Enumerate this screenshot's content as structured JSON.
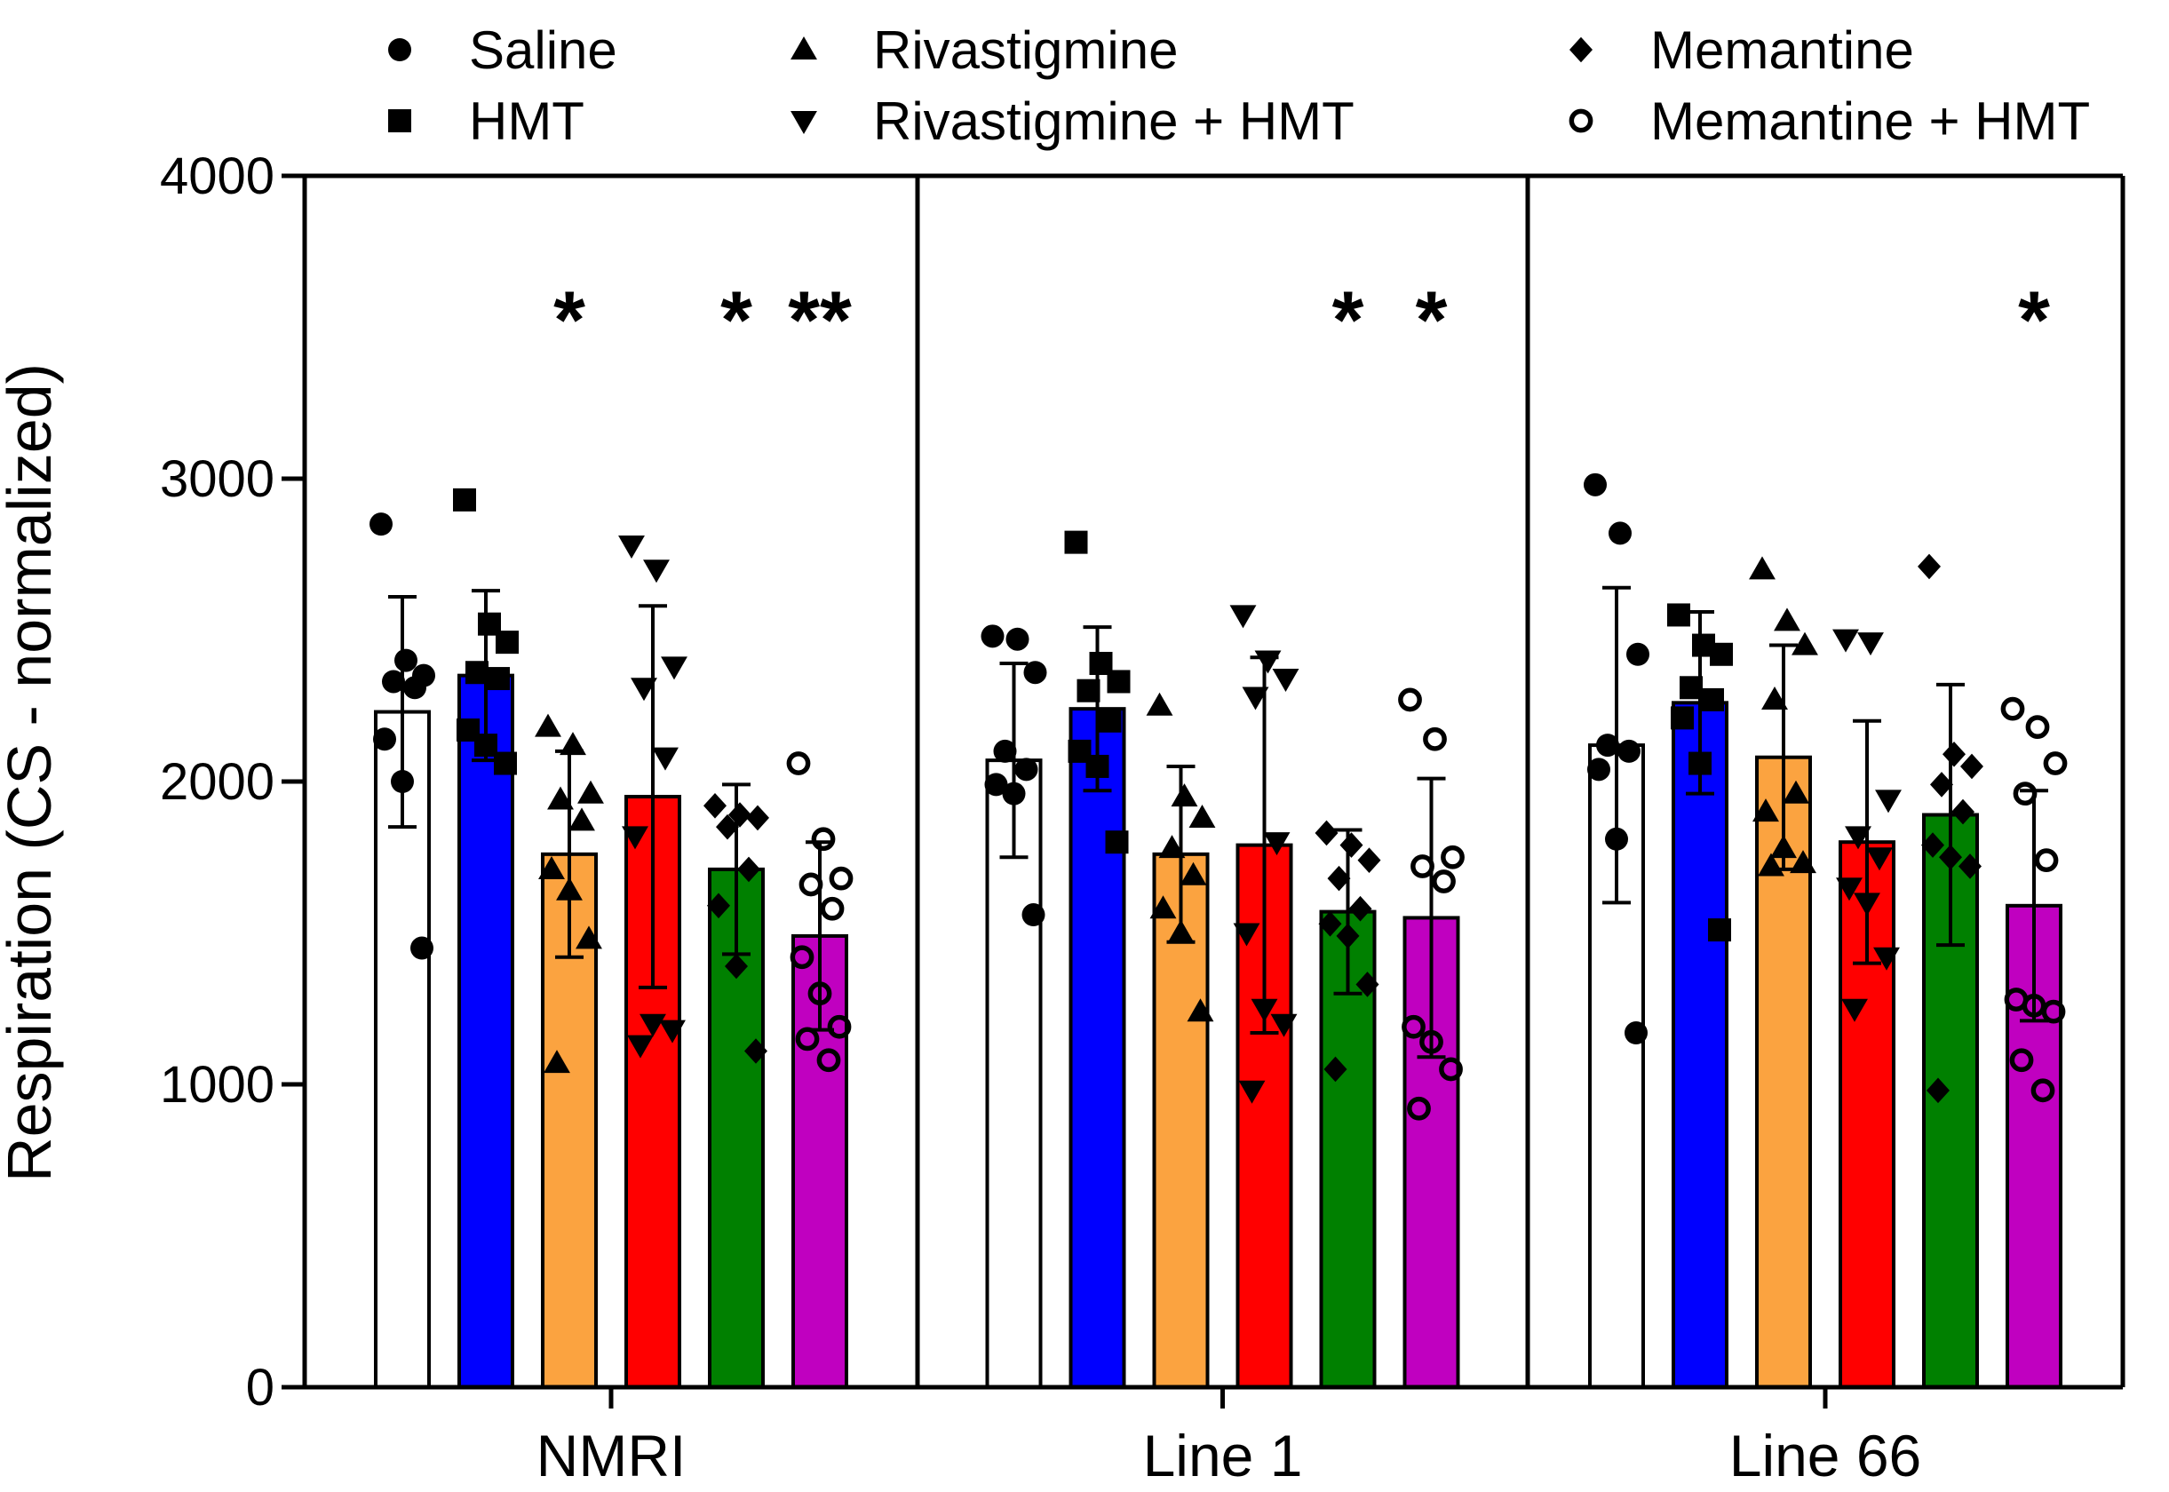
{
  "chart_data": {
    "type": "bar",
    "title": "",
    "xlabel": "",
    "ylabel": "Respiration (CS - normalized)",
    "ylim": [
      0,
      4000
    ],
    "yticks": [
      0,
      1000,
      2000,
      3000,
      4000
    ],
    "grid": false,
    "legend_position": "top",
    "error_bars": "standard deviation",
    "categories": [
      "NMRI",
      "Line 1",
      "Line 66"
    ],
    "series": [
      {
        "name": "Saline",
        "color": "#ffffff",
        "marker": "circle",
        "values": [
          2230,
          2070,
          2120
        ],
        "errors": [
          380,
          320,
          520
        ],
        "points": [
          [
            2850,
            2400,
            2350,
            2330,
            2310,
            2140,
            2000,
            1450
          ],
          [
            2480,
            2470,
            2360,
            2100,
            2040,
            1990,
            1960,
            1560
          ],
          [
            2980,
            2820,
            2420,
            2120,
            2100,
            2040,
            1810,
            1170
          ]
        ]
      },
      {
        "name": "HMT",
        "color": "#0000ff",
        "marker": "square",
        "values": [
          2350,
          2240,
          2260
        ],
        "errors": [
          280,
          270,
          300
        ],
        "points": [
          [
            2930,
            2520,
            2460,
            2360,
            2340,
            2170,
            2120,
            2060
          ],
          [
            2790,
            2390,
            2330,
            2300,
            2200,
            2100,
            2050,
            1800
          ],
          [
            2550,
            2450,
            2420,
            2310,
            2270,
            2210,
            2060,
            1510
          ]
        ]
      },
      {
        "name": "Rivastigmine",
        "color": "#fba340",
        "marker": "triangle-up",
        "values": [
          1760,
          1760,
          2080
        ],
        "errors": [
          340,
          290,
          370
        ],
        "points": [
          [
            2180,
            2120,
            1960,
            1940,
            1870,
            1710,
            1640,
            1480,
            1070
          ],
          [
            2250,
            1950,
            1880,
            1780,
            1690,
            1580,
            1500,
            1240
          ],
          [
            2700,
            2530,
            2450,
            2270,
            1960,
            1900,
            1780,
            1730,
            1720
          ]
        ]
      },
      {
        "name": "Rivastigmine + HMT",
        "color": "#ff0000",
        "marker": "triangle-down",
        "values": [
          1950,
          1790,
          1800
        ],
        "errors": [
          630,
          620,
          400
        ],
        "points": [
          [
            2780,
            2700,
            2380,
            2310,
            2080,
            1820,
            1200,
            1180,
            1130
          ],
          [
            2550,
            2400,
            2340,
            2280,
            1800,
            1500,
            1250,
            1200,
            980
          ],
          [
            2470,
            2460,
            1940,
            1820,
            1750,
            1650,
            1600,
            1420,
            1250
          ]
        ]
      },
      {
        "name": "Memantine",
        "color": "#008000",
        "marker": "diamond",
        "values": [
          1710,
          1570,
          1890
        ],
        "errors": [
          280,
          270,
          430
        ],
        "points": [
          [
            1920,
            1890,
            1880,
            1850,
            1710,
            1590,
            1390,
            1110
          ],
          [
            1830,
            1790,
            1740,
            1680,
            1580,
            1530,
            1490,
            1330,
            1050
          ],
          [
            2710,
            2090,
            2050,
            1990,
            1900,
            1790,
            1750,
            1720,
            980
          ]
        ]
      },
      {
        "name": "Memantine + HMT",
        "color": "#c000c0",
        "marker": "circle-open",
        "values": [
          1490,
          1550,
          1590
        ],
        "errors": [
          310,
          460,
          380
        ],
        "points": [
          [
            2060,
            1810,
            1680,
            1660,
            1580,
            1420,
            1300,
            1190,
            1150,
            1080
          ],
          [
            2270,
            2140,
            1750,
            1720,
            1670,
            1190,
            1140,
            1050,
            920
          ],
          [
            2240,
            2180,
            2060,
            1960,
            1740,
            1280,
            1260,
            1240,
            1080,
            980
          ]
        ]
      }
    ],
    "significance": [
      {
        "category": "NMRI",
        "series": "Rivastigmine",
        "label": "*"
      },
      {
        "category": "NMRI",
        "series": "Memantine",
        "label": "*"
      },
      {
        "category": "NMRI",
        "series": "Memantine + HMT",
        "label": "**"
      },
      {
        "category": "Line 1",
        "series": "Memantine",
        "label": "*"
      },
      {
        "category": "Line 1",
        "series": "Memantine + HMT",
        "label": "*"
      },
      {
        "category": "Line 66",
        "series": "Memantine + HMT",
        "label": "*"
      }
    ]
  }
}
